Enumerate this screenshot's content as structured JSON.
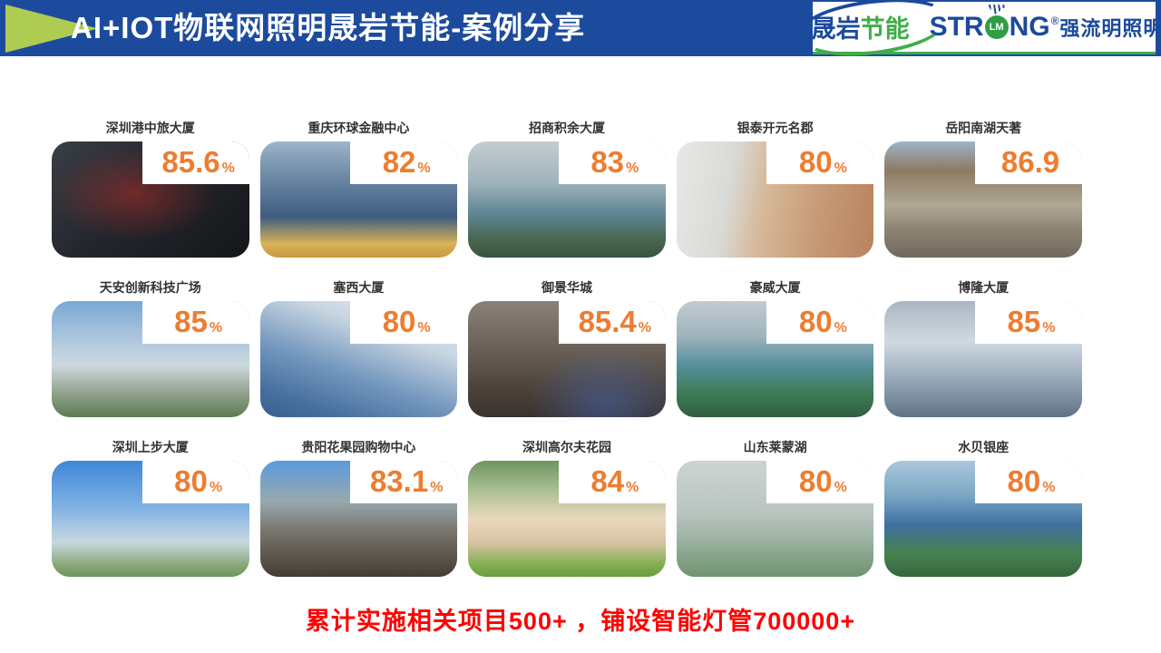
{
  "header": {
    "title": "AI+IOT物联网照明晟岩节能-案例分享",
    "shengyan_logo": {
      "text_blue": "晟岩",
      "text_green": "节能"
    },
    "strong_logo": {
      "prefix": "STR",
      "circle": "LM",
      "suffix": "NG",
      "reg": "®",
      "cn": "强流明照明"
    }
  },
  "colors": {
    "banner_blue": "#1c4b9e",
    "chevron_green": "#aecb52",
    "logo_blue": "#1b4a9c",
    "logo_green": "#3fae49",
    "accent_orange": "#ed7d31",
    "footer_red": "#ff0000"
  },
  "cards": [
    {
      "name": "深圳港中旅大厦",
      "value": "85.6",
      "unit": "%"
    },
    {
      "name": "重庆环球金融中心",
      "value": "82",
      "unit": "%"
    },
    {
      "name": "招商积余大厦",
      "value": "83",
      "unit": "%"
    },
    {
      "name": "银泰开元名郡",
      "value": "80",
      "unit": "%"
    },
    {
      "name": "岳阳南湖天著",
      "value": "86.9",
      "unit": ""
    },
    {
      "name": "天安创新科技广场",
      "value": "85",
      "unit": "%"
    },
    {
      "name": "塞西大厦",
      "value": "80",
      "unit": "%"
    },
    {
      "name": "御景华城",
      "value": "85.4",
      "unit": "%"
    },
    {
      "name": "豪威大厦",
      "value": "80",
      "unit": "%"
    },
    {
      "name": "博隆大厦",
      "value": "85",
      "unit": "%"
    },
    {
      "name": "深圳上步大厦",
      "value": "80",
      "unit": "%"
    },
    {
      "name": "贵阳花果园购物中心",
      "value": "83.1",
      "unit": "%"
    },
    {
      "name": "深圳高尔夫花园",
      "value": "84",
      "unit": "%"
    },
    {
      "name": "山东莱蒙湖",
      "value": "80",
      "unit": "%"
    },
    {
      "name": "水贝银座",
      "value": "80",
      "unit": "%"
    }
  ],
  "footer": {
    "summary": "累计实施相关项目500+ ，铺设智能灯管700000+"
  }
}
